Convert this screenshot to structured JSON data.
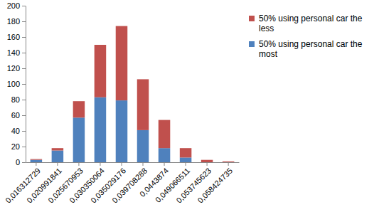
{
  "chart_data": {
    "type": "bar",
    "stacked": true,
    "legend": "right",
    "categories": [
      "0,016312729",
      "0,020991841",
      "0,025670953",
      "0,030350064",
      "0,035029176",
      "0,039708288",
      "0,0443874",
      "0,049066511",
      "0,053745623",
      "0,058424735"
    ],
    "series": [
      {
        "name": "50% using personal car the most",
        "color": "#4f81bd",
        "values": [
          3,
          15,
          57,
          83,
          79,
          41,
          18,
          6,
          0,
          0
        ]
      },
      {
        "name": "50% using personal car the less",
        "color": "#c0504d",
        "values": [
          1,
          3,
          21,
          67,
          95,
          65,
          36,
          12,
          3,
          1
        ]
      }
    ],
    "ylim": [
      0,
      200
    ],
    "yticks": [
      0,
      20,
      40,
      60,
      80,
      100,
      120,
      140,
      160,
      180,
      200
    ]
  }
}
